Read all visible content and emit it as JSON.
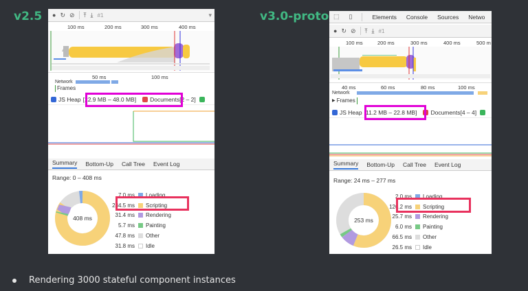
{
  "slide": {
    "left_title": "v2.5",
    "right_title": "v3.0-proto",
    "bullet": "Rendering 3000 stateful component instances",
    "accent_color": "#41b883"
  },
  "left": {
    "toolbar_counter": "#1",
    "top_ruler": [
      "100 ms",
      "200 ms",
      "300 ms",
      "400 ms"
    ],
    "bottom_ruler": [
      "50 ms",
      "100 ms"
    ],
    "network_label": "Network",
    "frames_label": "Frames",
    "heap_label": "JS Heap",
    "heap_range": "[22.9 MB – 48.0 MB]",
    "documents_label": "Documents[2 – 2]",
    "tabs": [
      "Summary",
      "Bottom-Up",
      "Call Tree",
      "Event Log"
    ],
    "range": "Range: 0 – 408 ms",
    "total": "408 ms",
    "legend": [
      {
        "value": "7.0 ms",
        "label": "Loading",
        "color": "#7fa9e6"
      },
      {
        "value": "284.5 ms",
        "label": "Scripting",
        "color": "#f7d279"
      },
      {
        "value": "31.4 ms",
        "label": "Rendering",
        "color": "#b19ae0"
      },
      {
        "value": "5.7 ms",
        "label": "Painting",
        "color": "#77c985"
      },
      {
        "value": "47.8 ms",
        "label": "Other",
        "color": "#dddddd"
      },
      {
        "value": "31.8 ms",
        "label": "Idle",
        "color": "#ffffff"
      }
    ]
  },
  "right": {
    "devtools_tabs": [
      "Elements",
      "Console",
      "Sources",
      "Netwo"
    ],
    "toolbar_counter": "#1",
    "top_ruler": [
      "100 ms",
      "200 ms",
      "300 ms",
      "400 ms",
      "500 m"
    ],
    "bottom_ruler": [
      "40 ms",
      "60 ms",
      "80 ms",
      "100 ms"
    ],
    "network_label": "Network",
    "frames_label": "Frames",
    "heap_label": "JS Heap",
    "heap_range": "[11.2 MB – 22.8 MB]",
    "documents_label": "Documents[4 – 4]",
    "tabs": [
      "Summary",
      "Bottom-Up",
      "Call Tree",
      "Event Log"
    ],
    "range": "Range: 24 ms – 277 ms",
    "total": "253 ms",
    "legend": [
      {
        "value": "2.0 ms",
        "label": "Loading",
        "color": "#7fa9e6"
      },
      {
        "value": "126.2 ms",
        "label": "Scripting",
        "color": "#f7d279"
      },
      {
        "value": "25.7 ms",
        "label": "Rendering",
        "color": "#b19ae0"
      },
      {
        "value": "6.0 ms",
        "label": "Painting",
        "color": "#77c985"
      },
      {
        "value": "66.5 ms",
        "label": "Other",
        "color": "#dddddd"
      },
      {
        "value": "26.5 ms",
        "label": "Idle",
        "color": "#ffffff"
      }
    ]
  }
}
